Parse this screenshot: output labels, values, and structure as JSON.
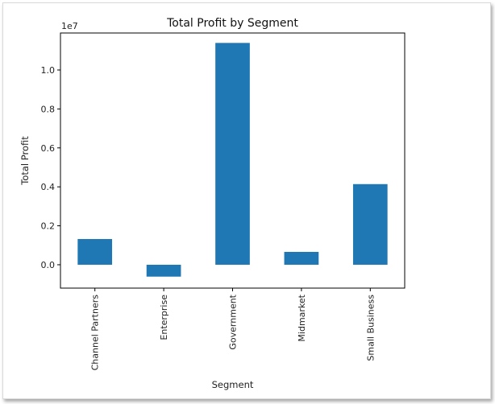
{
  "chart_data": {
    "type": "bar",
    "title": "Total Profit by Segment",
    "xlabel": "Segment",
    "ylabel": "Total Profit",
    "y_offset_text": "1e7",
    "y_scale": 10000000,
    "categories": [
      "Channel Partners",
      "Enterprise",
      "Government",
      "Midmarket",
      "Small Business"
    ],
    "values": [
      1320000,
      -610000,
      11390000,
      660000,
      4140000
    ],
    "ylim": [
      -1200000,
      11900000
    ],
    "yticks": [
      0,
      2000000,
      4000000,
      6000000,
      8000000,
      10000000
    ],
    "ytick_labels": [
      "0.0",
      "0.2",
      "0.4",
      "0.6",
      "0.8",
      "1.0"
    ],
    "bar_color": "#1f77b4",
    "grid": false,
    "legend": "none"
  }
}
